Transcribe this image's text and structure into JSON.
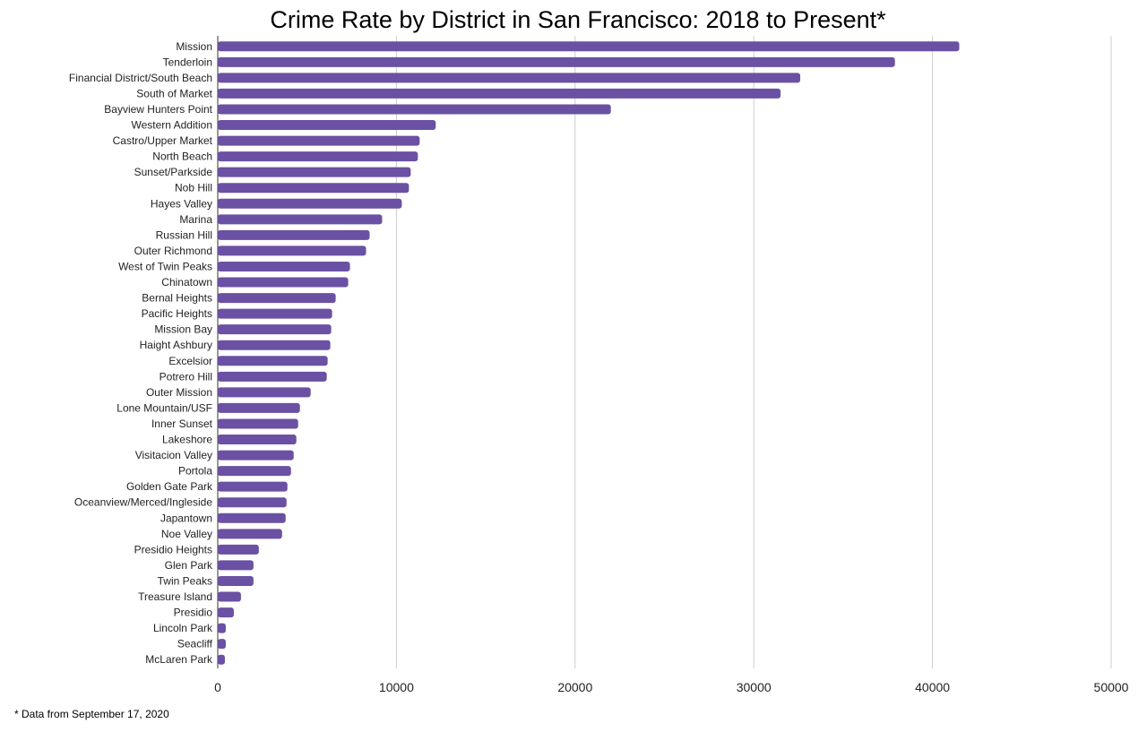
{
  "chart_data": {
    "type": "bar",
    "orientation": "horizontal",
    "title": "Crime Rate by District in San Francisco: 2018 to Present*",
    "footnote": "* Data from September 17, 2020",
    "xlabel": "",
    "ylabel": "",
    "xlim": [
      0,
      50000
    ],
    "ticks": [
      0,
      10000,
      20000,
      30000,
      40000,
      50000
    ],
    "tick_labels": [
      "0",
      "10000",
      "20000",
      "30000",
      "40000",
      "50000"
    ],
    "grid": "vertical",
    "bar_color": "#6a51a3",
    "categories": [
      "Mission",
      "Tenderloin",
      "Financial District/South Beach",
      "South of Market",
      "Bayview Hunters Point",
      "Western Addition",
      "Castro/Upper Market",
      "North Beach",
      "Sunset/Parkside",
      "Nob Hill",
      "Hayes Valley",
      "Marina",
      "Russian Hill",
      "Outer Richmond",
      "West of Twin Peaks",
      "Chinatown",
      "Bernal Heights",
      "Pacific Heights",
      "Mission Bay",
      "Haight Ashbury",
      "Excelsior",
      "Potrero Hill",
      "Outer Mission",
      "Lone Mountain/USF",
      "Inner Sunset",
      "Lakeshore",
      "Visitacion Valley",
      "Portola",
      "Golden Gate Park",
      "Oceanview/Merced/Ingleside",
      "Japantown",
      "Noe Valley",
      "Presidio Heights",
      "Glen Park",
      "Twin Peaks",
      "Treasure Island",
      "Presidio",
      "Lincoln Park",
      "Seacliff",
      "McLaren Park"
    ],
    "values": [
      41500,
      37900,
      32600,
      31500,
      22000,
      12200,
      11300,
      11200,
      10800,
      10700,
      10300,
      9200,
      8500,
      8300,
      7400,
      7300,
      6600,
      6400,
      6350,
      6300,
      6150,
      6100,
      5200,
      4600,
      4500,
      4400,
      4250,
      4100,
      3900,
      3850,
      3800,
      3600,
      2300,
      2000,
      2000,
      1300,
      900,
      450,
      450,
      400
    ]
  }
}
